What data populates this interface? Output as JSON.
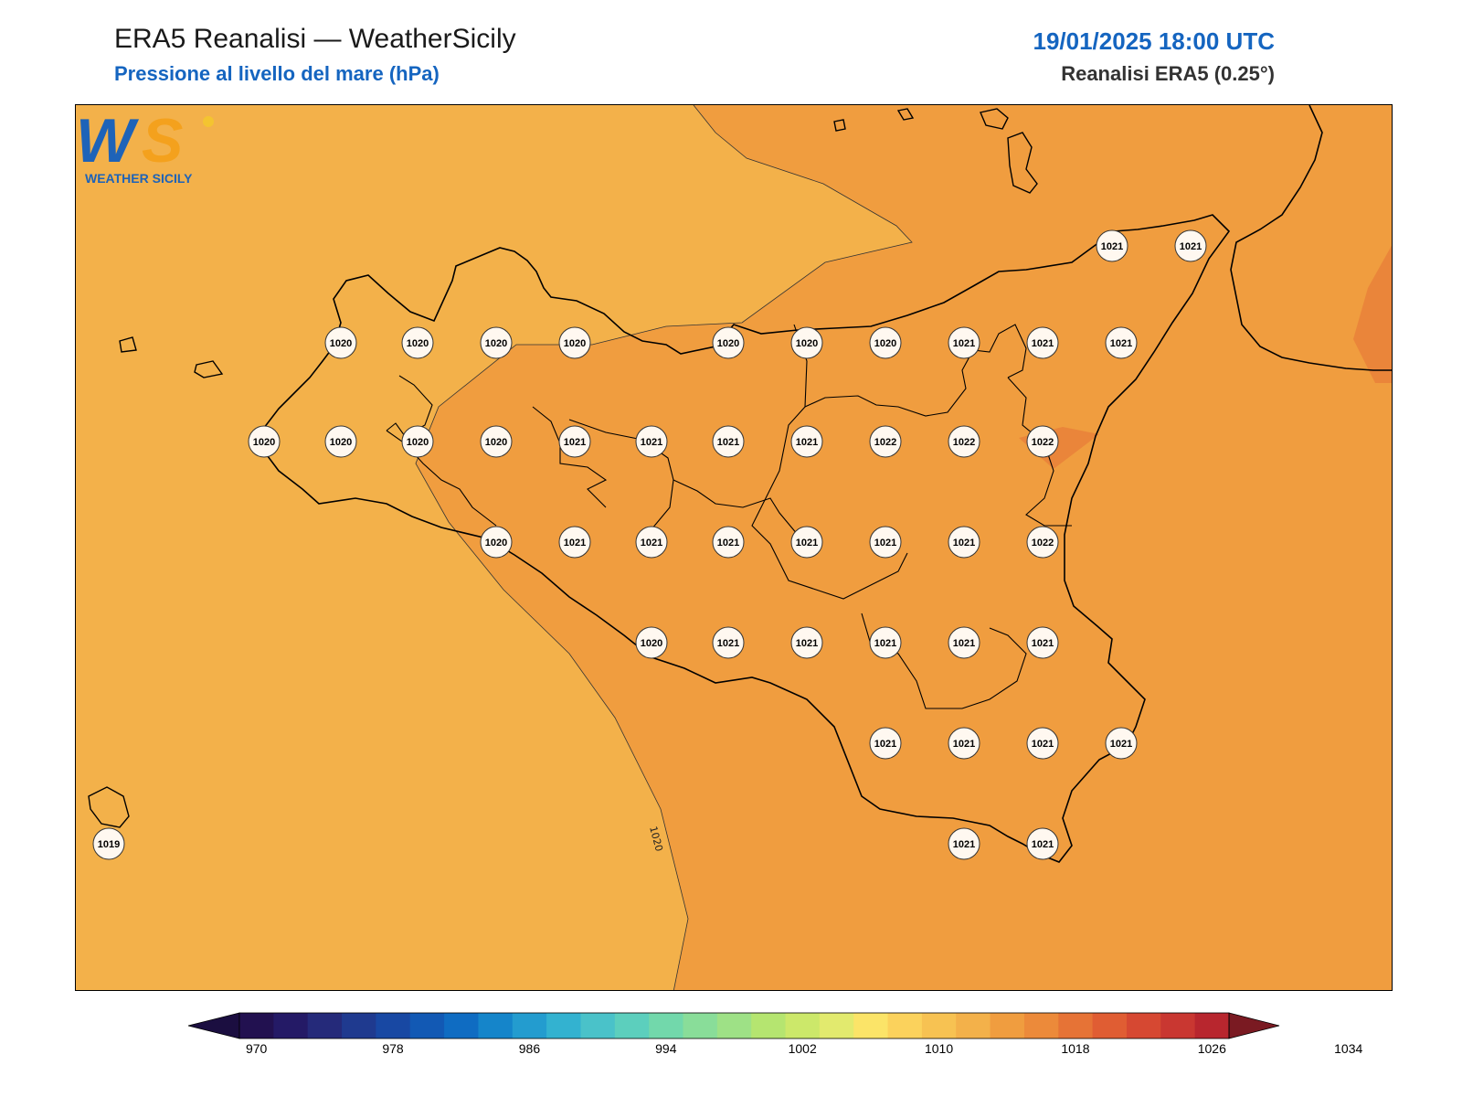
{
  "header": {
    "title": "ERA5 Reanalisi — WeatherSicily",
    "subtitle": "Pressione al livello del mare (hPa)",
    "datetime": "19/01/2025 18:00 UTC",
    "source": "Reanalisi ERA5 (0.25°)"
  },
  "contour_label": "1020",
  "colors": {
    "band_1018_1020": "#f3b14a",
    "band_1020_1022": "#f09d3f",
    "band_1022_1024": "#ea853a",
    "title": "#1565c0"
  },
  "stations": [
    {
      "value": "1021"
    },
    {
      "value": "1021"
    },
    {
      "value": "1020"
    },
    {
      "value": "1020"
    },
    {
      "value": "1020"
    },
    {
      "value": "1020"
    },
    {
      "value": "1020"
    },
    {
      "value": "1020"
    },
    {
      "value": "1020"
    },
    {
      "value": "1021"
    },
    {
      "value": "1021"
    },
    {
      "value": "1021"
    },
    {
      "value": "1020"
    },
    {
      "value": "1020"
    },
    {
      "value": "1020"
    },
    {
      "value": "1020"
    },
    {
      "value": "1021"
    },
    {
      "value": "1021"
    },
    {
      "value": "1021"
    },
    {
      "value": "1021"
    },
    {
      "value": "1022"
    },
    {
      "value": "1022"
    },
    {
      "value": "1022"
    },
    {
      "value": "1020"
    },
    {
      "value": "1021"
    },
    {
      "value": "1021"
    },
    {
      "value": "1021"
    },
    {
      "value": "1021"
    },
    {
      "value": "1021"
    },
    {
      "value": "1021"
    },
    {
      "value": "1022"
    },
    {
      "value": "1020"
    },
    {
      "value": "1021"
    },
    {
      "value": "1021"
    },
    {
      "value": "1021"
    },
    {
      "value": "1021"
    },
    {
      "value": "1021"
    },
    {
      "value": "1021"
    },
    {
      "value": "1021"
    },
    {
      "value": "1021"
    },
    {
      "value": "1021"
    },
    {
      "value": "1021"
    },
    {
      "value": "1021"
    },
    {
      "value": "1019"
    }
  ],
  "colorbar": {
    "ticks": [
      "970",
      "978",
      "986",
      "994",
      "1002",
      "1010",
      "1018",
      "1026",
      "1034"
    ],
    "colors": [
      "#221150",
      "#241a66",
      "#252a7a",
      "#1f3a8f",
      "#1848a3",
      "#1259b4",
      "#0f6cc2",
      "#1585ca",
      "#239ccf",
      "#33b2d0",
      "#4ac2c9",
      "#5ccfbd",
      "#72d8ab",
      "#89dd99",
      "#9ee186",
      "#b5e570",
      "#cce86a",
      "#e2ea6e",
      "#fbe468",
      "#fbd25c",
      "#f7c252",
      "#f3b14a",
      "#f09d3f",
      "#ec8a3a",
      "#e67336",
      "#e05d33",
      "#d64832",
      "#c93731",
      "#b8262e"
    ]
  },
  "logo": {
    "text": "WEATHER SICILY"
  }
}
